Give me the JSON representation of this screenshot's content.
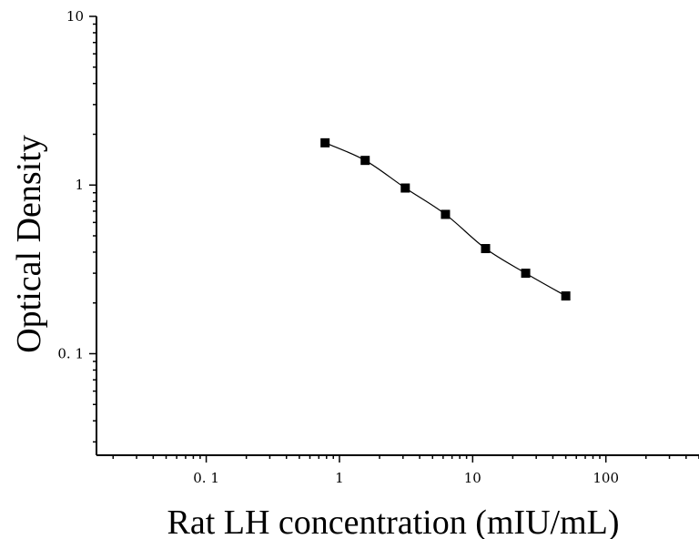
{
  "chart_data": {
    "type": "scatter",
    "title": "",
    "xlabel": "Rat LH concentration (mIU/mL)",
    "ylabel": "Optical Density",
    "xscale": "log",
    "yscale": "log",
    "xlim": [
      0.015,
      500
    ],
    "ylim": [
      0.025,
      10
    ],
    "xticks": [
      0.1,
      1,
      10,
      100
    ],
    "xtick_labels": [
      "0. 1",
      "1",
      "10",
      "100"
    ],
    "yticks": [
      0.1,
      1,
      10
    ],
    "ytick_labels": [
      "0. 1",
      "1",
      "10"
    ],
    "grid": false,
    "legend": "none",
    "marker": "square",
    "fit_line": "smooth curve through points",
    "series": [
      {
        "x": [
          0.78,
          1.56,
          3.12,
          6.25,
          12.5,
          25,
          50
        ],
        "values": [
          1.78,
          1.4,
          0.96,
          0.67,
          0.42,
          0.3,
          0.22
        ]
      }
    ],
    "colors": {
      "marker": "#000000",
      "line": "#000000",
      "axis": "#000000"
    }
  }
}
